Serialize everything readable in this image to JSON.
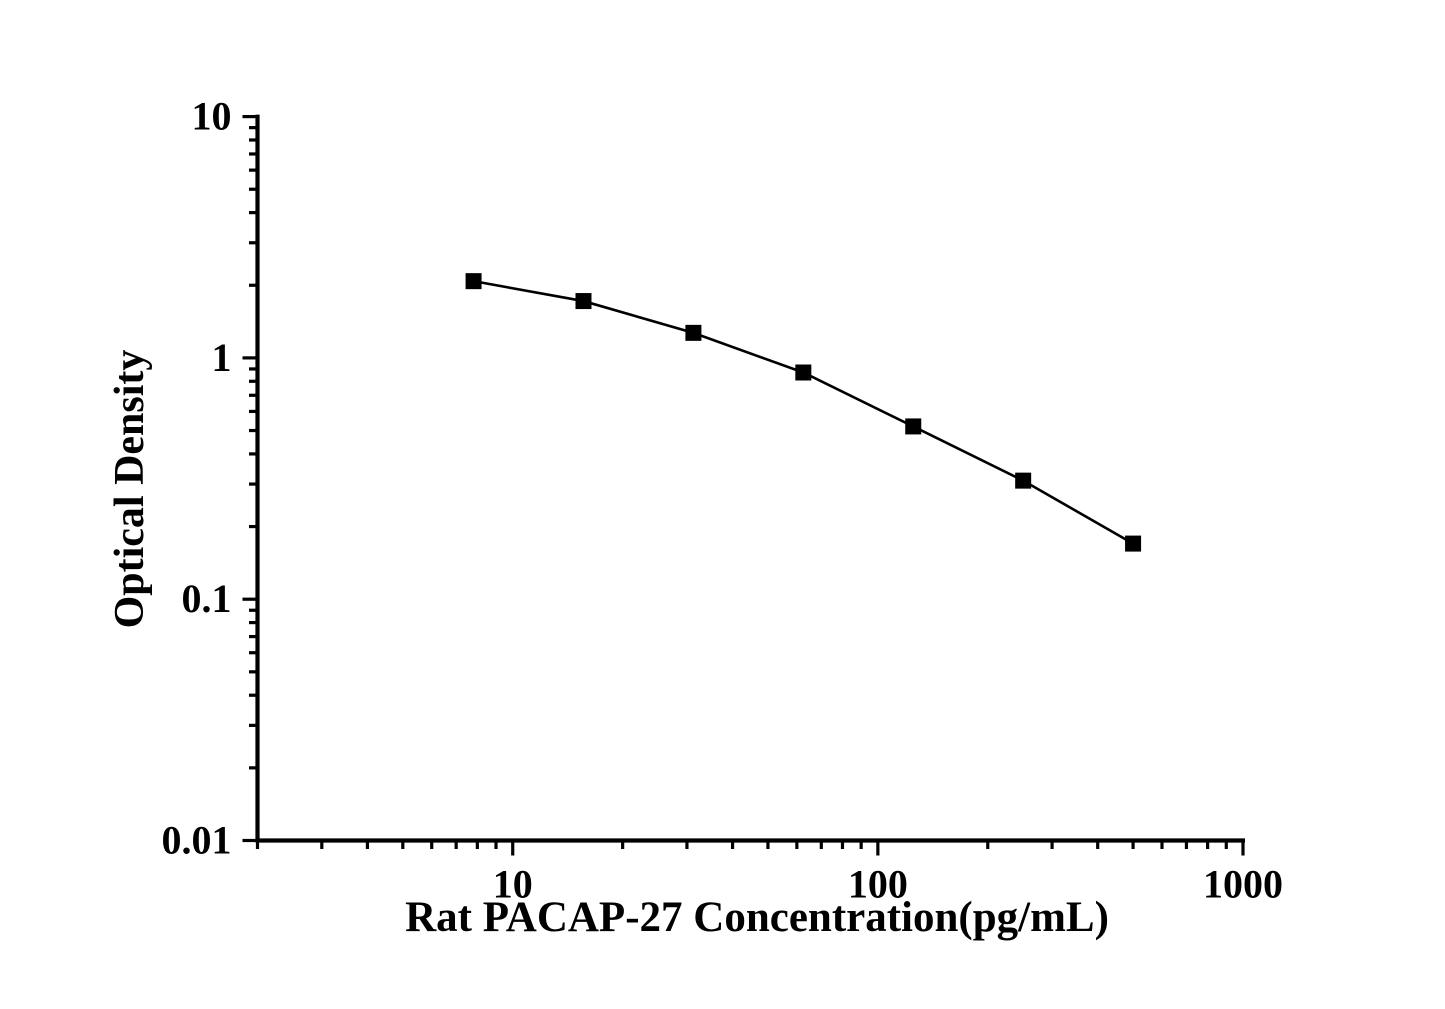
{
  "figure": {
    "background": "#ffffff",
    "kind": "ELISA standard curve"
  },
  "chart_data": {
    "type": "line",
    "title": "",
    "xlabel": "Rat PACAP-27 Concentration(pg/mL)",
    "ylabel": "Optical Density",
    "x_scale": "log",
    "y_scale": "log",
    "xlim": [
      2,
      1000
    ],
    "ylim": [
      0.01,
      10
    ],
    "grid": false,
    "legend": "none",
    "axis_color": "#000000",
    "x_ticks": [
      {
        "value": 10,
        "label": "10"
      },
      {
        "value": 100,
        "label": "100"
      },
      {
        "value": 1000,
        "label": "1000"
      }
    ],
    "y_ticks": [
      {
        "value": 10,
        "label": "10"
      },
      {
        "value": 1,
        "label": "1"
      },
      {
        "value": 0.1,
        "label": "0.1"
      },
      {
        "value": 0.01,
        "label": "0.01"
      }
    ],
    "series": [
      {
        "name": "standard-curve",
        "color": "#000000",
        "marker": "square",
        "marker_size": 16,
        "line_width": 2.6,
        "points": [
          {
            "x": 7.8125,
            "y": 2.08
          },
          {
            "x": 15.625,
            "y": 1.72
          },
          {
            "x": 31.25,
            "y": 1.27
          },
          {
            "x": 62.5,
            "y": 0.87
          },
          {
            "x": 125,
            "y": 0.52
          },
          {
            "x": 250,
            "y": 0.31
          },
          {
            "x": 500,
            "y": 0.17
          }
        ]
      }
    ]
  }
}
